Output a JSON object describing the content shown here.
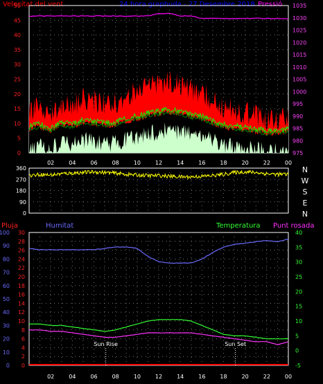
{
  "colors": {
    "background": "#000000",
    "wind": "#ff0000",
    "gust_fill": "#ff0000",
    "wind_avg": "#00ff00",
    "wind_min_fill": "#ccffcc",
    "temp_line": "#00cc00",
    "pressure": "#ff00ff",
    "title": "#0000ff",
    "direction": "#ffff00",
    "humidity": "#6a6aff",
    "temperature": "#33ff33",
    "dewpoint": "#ff33ff",
    "rain": "#ff0000",
    "axis_text": "#ffffff",
    "hum_axis": "#6a6aff",
    "rain_axis": "#ff2222"
  },
  "header": {
    "wind_label": "Velocitat del vent",
    "title": "24 hora graphuda - 27 Desembre 2018",
    "pressure_label": "Pressió"
  },
  "panel1": {
    "left_ticks": [
      "50",
      "45",
      "40",
      "35",
      "30",
      "25",
      "20",
      "15",
      "10",
      "5",
      "0"
    ],
    "right_ticks": [
      "1035",
      "1030",
      "1025",
      "1020",
      "1015",
      "1010",
      "1005",
      "1000",
      "995",
      "990",
      "985",
      "980",
      "975"
    ]
  },
  "panel2": {
    "left_ticks": [
      "360",
      "270",
      "180",
      "90",
      "0"
    ],
    "compass": [
      "N",
      "W",
      "S",
      "E",
      "N"
    ]
  },
  "panel3": {
    "labels": {
      "rain": "Pluja",
      "humidity": "Humitat",
      "temperature": "Temperatura",
      "dewpoint": "Punt rosada",
      "sunrise": "Sun Rise",
      "sunset": "Sun Set"
    },
    "hum_ticks": [
      "100",
      "90",
      "80",
      "70",
      "60",
      "50",
      "40",
      "30",
      "20",
      "10",
      "0"
    ],
    "rain_ticks": [
      "30",
      "28",
      "26",
      "24",
      "22",
      "20",
      "18",
      "16",
      "14",
      "12",
      "10",
      "8",
      "6",
      "4",
      "2",
      "0"
    ],
    "temp_ticks": [
      "40",
      "35",
      "30",
      "25",
      "20",
      "15",
      "10",
      "5",
      "0",
      "-5"
    ]
  },
  "x_axis_labels": [
    "02",
    "04",
    "06",
    "08",
    "10",
    "12",
    "14",
    "16",
    "18",
    "20",
    "22",
    "00"
  ],
  "chart_data": [
    {
      "type": "area",
      "title": "24 hora graphuda - 27 Desembre 2018",
      "x": [
        0,
        1,
        2,
        3,
        4,
        5,
        6,
        7,
        8,
        9,
        10,
        11,
        12,
        13,
        14,
        15,
        16,
        17,
        18,
        19,
        20,
        21,
        22,
        23,
        24
      ],
      "series": [
        {
          "name": "Velocitat del vent",
          "values": [
            13,
            14,
            12,
            15,
            14,
            17,
            16,
            15,
            15,
            18,
            19,
            21,
            22,
            23,
            22,
            20,
            19,
            16,
            14,
            13,
            12,
            11,
            10,
            10,
            11
          ]
        },
        {
          "name": "Pressió",
          "values": [
            1031,
            1031,
            1031,
            1031,
            1031,
            1031,
            1031,
            1031,
            1031,
            1031,
            1031,
            1031,
            1032,
            1032,
            1031,
            1031,
            1030,
            1030,
            1030,
            1030,
            1030,
            1030,
            1030,
            1030,
            1030
          ]
        }
      ],
      "ylim": [
        0,
        50
      ],
      "y2lim": [
        975,
        1035
      ]
    },
    {
      "type": "scatter",
      "x": [
        0,
        1,
        2,
        3,
        4,
        5,
        6,
        7,
        8,
        9,
        10,
        11,
        12,
        13,
        14,
        15,
        16,
        17,
        18,
        19,
        20,
        21,
        22,
        23,
        24
      ],
      "values": [
        300,
        310,
        305,
        315,
        320,
        325,
        330,
        325,
        320,
        310,
        305,
        300,
        300,
        295,
        290,
        290,
        295,
        300,
        310,
        325,
        330,
        325,
        315,
        310,
        310
      ],
      "ylim": [
        0,
        360
      ]
    },
    {
      "type": "line",
      "x": [
        0,
        1,
        2,
        3,
        4,
        5,
        6,
        7,
        8,
        9,
        10,
        11,
        12,
        13,
        14,
        15,
        16,
        17,
        18,
        19,
        20,
        21,
        22,
        23,
        24
      ],
      "series": [
        {
          "name": "Humitat",
          "values": [
            88,
            87,
            87,
            87,
            87,
            87,
            87,
            88,
            89,
            89,
            88,
            82,
            78,
            77,
            77,
            77,
            80,
            85,
            89,
            91,
            92,
            93,
            94,
            93,
            95
          ]
        },
        {
          "name": "Temperatura",
          "values": [
            9,
            9,
            8.5,
            8.5,
            8,
            7.5,
            7,
            6.5,
            7,
            8,
            9,
            10,
            10.5,
            10.5,
            10.5,
            10,
            8.5,
            7,
            5.5,
            5,
            5,
            4.5,
            4,
            4,
            4
          ]
        },
        {
          "name": "Punt rosada",
          "values": [
            7,
            7,
            6.5,
            6.5,
            6,
            5.5,
            5,
            4.5,
            4.5,
            5,
            5.5,
            6,
            6,
            6,
            6,
            6,
            5.5,
            5,
            4.5,
            4,
            3.5,
            3,
            3,
            2,
            3
          ]
        },
        {
          "name": "Pluja",
          "values": [
            0,
            0,
            0,
            0,
            0,
            0,
            0,
            0,
            0,
            0,
            0,
            0,
            0,
            0,
            0,
            0,
            0,
            0,
            0,
            0,
            0,
            0,
            0,
            0,
            0
          ]
        }
      ],
      "ylim": [
        0,
        100
      ],
      "y2lim": [
        -5,
        40
      ],
      "rain_ylim": [
        0,
        30
      ],
      "annotations": [
        "Sun Rise",
        "Sun Set"
      ]
    }
  ]
}
